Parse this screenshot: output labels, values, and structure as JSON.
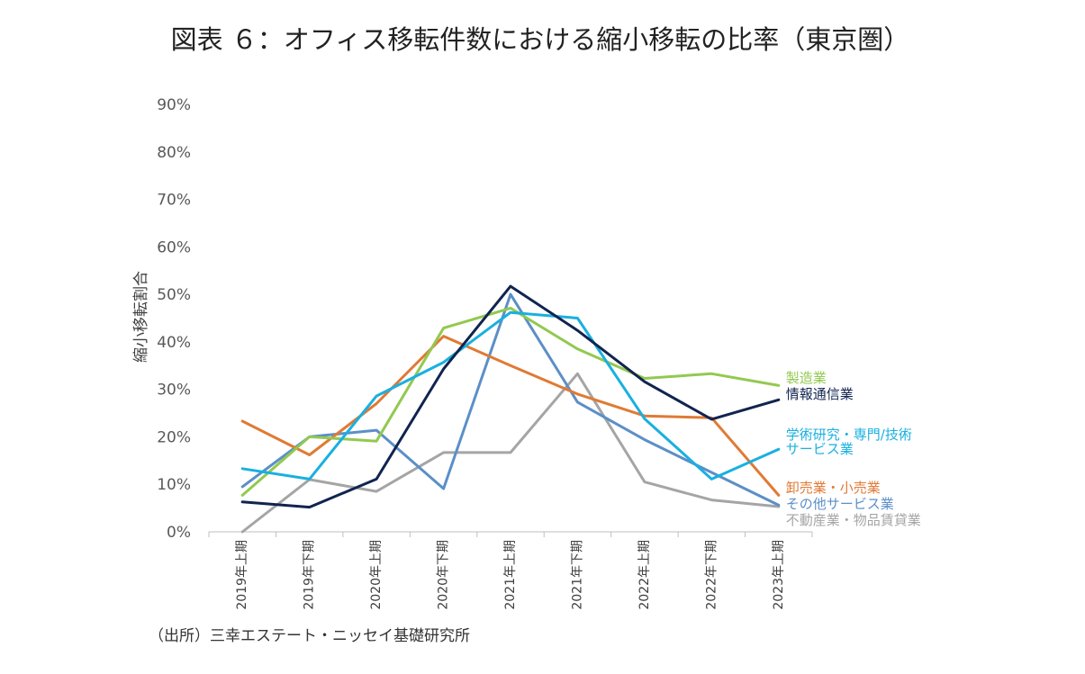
{
  "title": "図表 ６：オフィス移転件数における縮小移転の比率（東京圏）",
  "source": "（出所）三幸エステート・ニッセイ基礎研究所",
  "chart_data": {
    "type": "line",
    "title": "図表 ６：オフィス移転件数における縮小移転の比率（東京圏）",
    "ylabel": "縮小移転割合",
    "xlabel": "",
    "ylim": [
      0,
      90
    ],
    "yticks": [
      0,
      10,
      20,
      30,
      40,
      50,
      60,
      70,
      80,
      90
    ],
    "ytick_labels": [
      "0%",
      "10%",
      "20%",
      "30%",
      "40%",
      "50%",
      "60%",
      "70%",
      "80%",
      "90%"
    ],
    "categories": [
      "2019年上期",
      "2019年下期",
      "2020年上期",
      "2020年下期",
      "2021年上期",
      "2021年下期",
      "2022年上期",
      "2022年下期",
      "2023年上期"
    ],
    "grid": false,
    "legend": "right-end-labels",
    "series": [
      {
        "name": "不動産業・物品賃貸業",
        "color": "#a5a5a5",
        "values": [
          0,
          11,
          8.5,
          16.7,
          16.7,
          33.3,
          10.5,
          6.7,
          5.3
        ]
      },
      {
        "name": "その他サービス業",
        "color": "#5b8fc7",
        "values": [
          9.5,
          20,
          21.4,
          9.1,
          50,
          27.3,
          19.4,
          12.5,
          5.6
        ]
      },
      {
        "name": "卸売業・小売業",
        "color": "#e07a34",
        "values": [
          23.3,
          16.2,
          27,
          41.2,
          35,
          29,
          24.4,
          24,
          7.7
        ]
      },
      {
        "name": "製造業",
        "color": "#92c950",
        "values": [
          7.7,
          20,
          19.1,
          42.9,
          47.1,
          38.5,
          32.3,
          33.3,
          30.8
        ]
      },
      {
        "name": "学術研究・専門/技術サービス業",
        "label_lines": [
          "学術研究・専門/技術",
          "サービス業"
        ],
        "color": "#19b0e0",
        "values": [
          13.3,
          11.1,
          28.6,
          35.7,
          46.2,
          45,
          23.8,
          11.1,
          17.4
        ]
      },
      {
        "name": "情報通信業",
        "color": "#10244f",
        "values": [
          6.3,
          5.2,
          11.1,
          34.3,
          51.7,
          42.4,
          31.6,
          23.7,
          27.8
        ]
      }
    ]
  }
}
